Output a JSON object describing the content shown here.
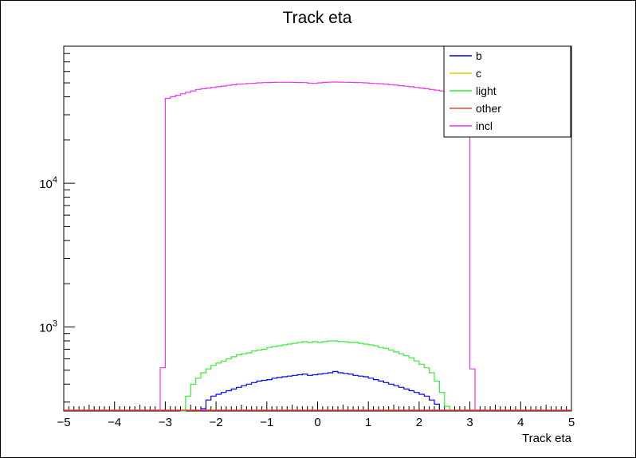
{
  "chart_data": {
    "type": "line",
    "title": "Track eta",
    "xlabel": "Track eta",
    "ylabel": "",
    "xlim": [
      -5,
      5
    ],
    "ylim": [
      260,
      90000
    ],
    "ylog": true,
    "grid": false,
    "legend_position": "top-right",
    "x_ticks": [
      "−5",
      "−4",
      "−3",
      "−2",
      "−1",
      "0",
      "1",
      "2",
      "3",
      "4",
      "5"
    ],
    "y_ticks": [
      {
        "base": "10",
        "exp": "3",
        "value": 1000
      },
      {
        "base": "10",
        "exp": "4",
        "value": 10000
      }
    ],
    "bin_width": 0.1,
    "series": [
      {
        "name": "b",
        "color": "#0000ff",
        "bin_start": -2.3,
        "values": [
          270,
          310,
          330,
          340,
          350,
          360,
          370,
          380,
          390,
          400,
          410,
          420,
          425,
          430,
          440,
          445,
          450,
          455,
          460,
          465,
          470,
          460,
          465,
          470,
          475,
          480,
          490,
          480,
          475,
          470,
          460,
          455,
          450,
          440,
          430,
          420,
          410,
          400,
          390,
          380,
          370,
          360,
          350,
          340,
          330,
          310,
          290
        ]
      },
      {
        "name": "c",
        "color": "#ddcc00",
        "bin_start": -5,
        "values": []
      },
      {
        "name": "light",
        "color": "#33ee33",
        "bin_start": -2.7,
        "values": [
          260,
          330,
          400,
          440,
          480,
          510,
          540,
          560,
          580,
          600,
          620,
          640,
          650,
          660,
          680,
          690,
          700,
          720,
          730,
          740,
          750,
          760,
          770,
          780,
          790,
          780,
          790,
          780,
          790,
          800,
          800,
          790,
          790,
          780,
          780,
          770,
          760,
          750,
          740,
          720,
          710,
          690,
          670,
          650,
          630,
          610,
          580,
          550,
          520,
          480,
          420,
          350,
          280
        ]
      },
      {
        "name": "other",
        "color": "#ee4433",
        "bin_start": -5,
        "values": []
      },
      {
        "name": "incl",
        "color": "#ee33ee",
        "bin_start": -3.1,
        "values": [
          520,
          39000,
          40000,
          41000,
          42000,
          43000,
          44000,
          45000,
          45500,
          46000,
          46500,
          47000,
          47500,
          48000,
          48500,
          49000,
          49200,
          49500,
          49700,
          50000,
          50200,
          50300,
          50400,
          50500,
          50500,
          50500,
          50400,
          50300,
          50200,
          49800,
          49600,
          50000,
          50400,
          50600,
          50700,
          50600,
          50500,
          50400,
          50300,
          50200,
          50000,
          49700,
          49500,
          49300,
          49000,
          48600,
          48200,
          47800,
          47400,
          47000,
          46500,
          46000,
          45500,
          45000,
          44500,
          44000,
          43500,
          43000,
          42000,
          41000,
          40000,
          510
        ]
      }
    ]
  }
}
